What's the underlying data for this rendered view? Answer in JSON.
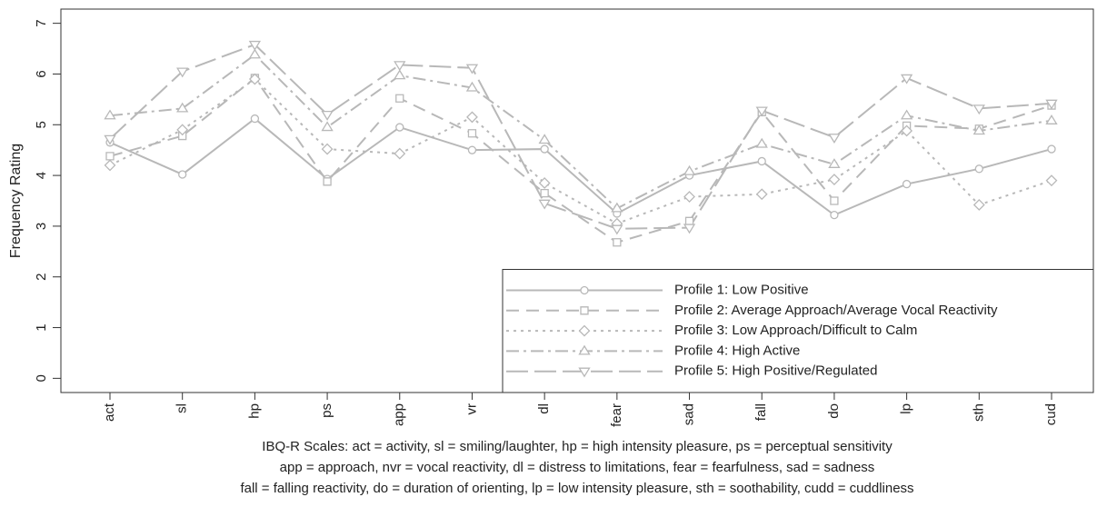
{
  "chart_data": {
    "type": "line",
    "y_label": "Frequency Rating",
    "categories": [
      "act",
      "sl",
      "hp",
      "ps",
      "app",
      "vr",
      "dl",
      "fear",
      "sad",
      "fall",
      "do",
      "lp",
      "sth",
      "cud"
    ],
    "series": [
      {
        "name": "Profile 1: Low Positive",
        "color": "#b8b8b8",
        "dash": "solid",
        "marker": "circle",
        "values": [
          4.65,
          4.02,
          5.12,
          3.93,
          4.95,
          4.5,
          4.52,
          3.25,
          4.0,
          4.28,
          3.22,
          3.83,
          4.13,
          4.52
        ]
      },
      {
        "name": "Profile 2: Average Approach/Average Vocal Reactivity",
        "color": "#b8b8b8",
        "dash": "dashed",
        "marker": "square",
        "values": [
          4.38,
          4.78,
          5.92,
          3.88,
          5.52,
          4.83,
          3.65,
          2.68,
          3.1,
          5.25,
          3.5,
          4.98,
          4.92,
          5.38
        ]
      },
      {
        "name": "Profile 3: Low Approach/Difficult to Calm",
        "color": "#b8b8b8",
        "dash": "dotted",
        "marker": "diamond",
        "values": [
          4.2,
          4.9,
          5.9,
          4.52,
          4.43,
          5.15,
          3.85,
          3.05,
          3.58,
          3.63,
          3.92,
          4.88,
          3.42,
          3.9
        ]
      },
      {
        "name": "Profile 4: High Active",
        "color": "#b8b8b8",
        "dash": "dashdot",
        "marker": "triangle-up",
        "values": [
          5.18,
          5.32,
          6.38,
          4.95,
          5.97,
          5.73,
          4.7,
          3.35,
          4.08,
          4.62,
          4.22,
          5.18,
          4.88,
          5.08
        ]
      },
      {
        "name": "Profile 5: High Positive/Regulated",
        "color": "#b8b8b8",
        "dash": "longdash",
        "marker": "triangle-down",
        "values": [
          4.72,
          6.05,
          6.58,
          5.2,
          6.18,
          6.12,
          3.45,
          2.95,
          2.97,
          5.28,
          4.75,
          5.92,
          5.32,
          5.42
        ]
      }
    ],
    "ylim": [
      -0.28,
      7.28
    ],
    "yticks": [
      0,
      1,
      2,
      3,
      4,
      5,
      6,
      7
    ],
    "legend": "bottom-right",
    "caption": [
      "IBQ-R Scales: act = activity, sl = smiling/laughter, hp = high intensity pleasure, ps = perceptual sensitivity",
      "app = approach, nvr = vocal reactivity, dl = distress to limitations, fear = fearfulness, sad = sadness",
      "fall = falling reactivity, do = duration of orienting, lp = low intensity pleasure, sth = soothability, cudd = cuddliness"
    ]
  }
}
